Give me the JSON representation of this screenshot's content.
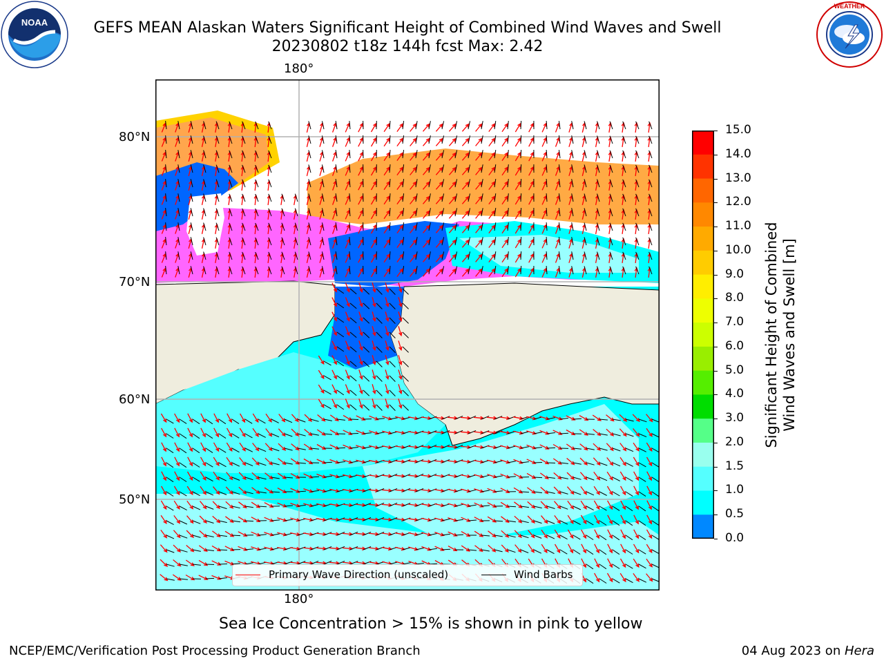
{
  "header": {
    "title_line1": "GEFS MEAN Alaskan Waters Significant Height of Combined Wind Waves and Swell",
    "title_line2": "20230802 t18z 144h fcst   Max: 2.42",
    "left_logo": {
      "name": "noaa-logo",
      "text": "NOAA",
      "ring_text": "NATIONAL OCEANIC AND ATMOSPHERIC ADMINISTRATION · U.S. DEPARTMENT OF COMMERCE"
    },
    "right_logo": {
      "name": "nws-logo",
      "ring_text": "NATIONAL WEATHER SERVICE"
    }
  },
  "map": {
    "lon_label_top": "180°",
    "lon_label_bottom": "180°",
    "lat_labels": [
      "80°N",
      "70°N",
      "60°N",
      "50°N"
    ],
    "colors": {
      "land": "#efedde",
      "water_low": "#00ffff",
      "water_mid": "#99ffff",
      "ice_pink": "#ff66ff",
      "ice_orange": "#ffaa33",
      "ice_yellow": "#ffee00",
      "deep_blue": "#0066ff",
      "grid": "#b0b0b0"
    }
  },
  "legend": {
    "wave_label": "Primary Wave Direction (unscaled)",
    "wind_label": "Wind Barbs",
    "wave_color": "#ff0000",
    "wind_color": "#000000"
  },
  "colorbar": {
    "label_line1": "Significant Height of Combined",
    "label_line2": "Wind Waves and Swell [m]",
    "ticks": [
      "15.0",
      "14.0",
      "13.0",
      "12.0",
      "11.0",
      "10.0",
      "9.0",
      "8.0",
      "7.0",
      "6.0",
      "5.0",
      "4.0",
      "3.0",
      "2.0",
      "1.5",
      "1.0",
      "0.5",
      "0.0"
    ],
    "colors": [
      "#ff0000",
      "#ff3300",
      "#ff6600",
      "#ff8800",
      "#ffaa00",
      "#ffcc00",
      "#ffee00",
      "#eeff00",
      "#ccff00",
      "#99ee00",
      "#55ee00",
      "#00dd00",
      "#55ff88",
      "#99ffee",
      "#55ffff",
      "#00ffff",
      "#0088ff",
      "#0000ff"
    ]
  },
  "note": "Sea Ice Concentration > 15% is shown in pink to yellow",
  "footer": {
    "left": "NCEP/EMC/Verification Post Processing Product Generation Branch",
    "right_date": "04 Aug 2023 on ",
    "right_machine": "Hera"
  }
}
